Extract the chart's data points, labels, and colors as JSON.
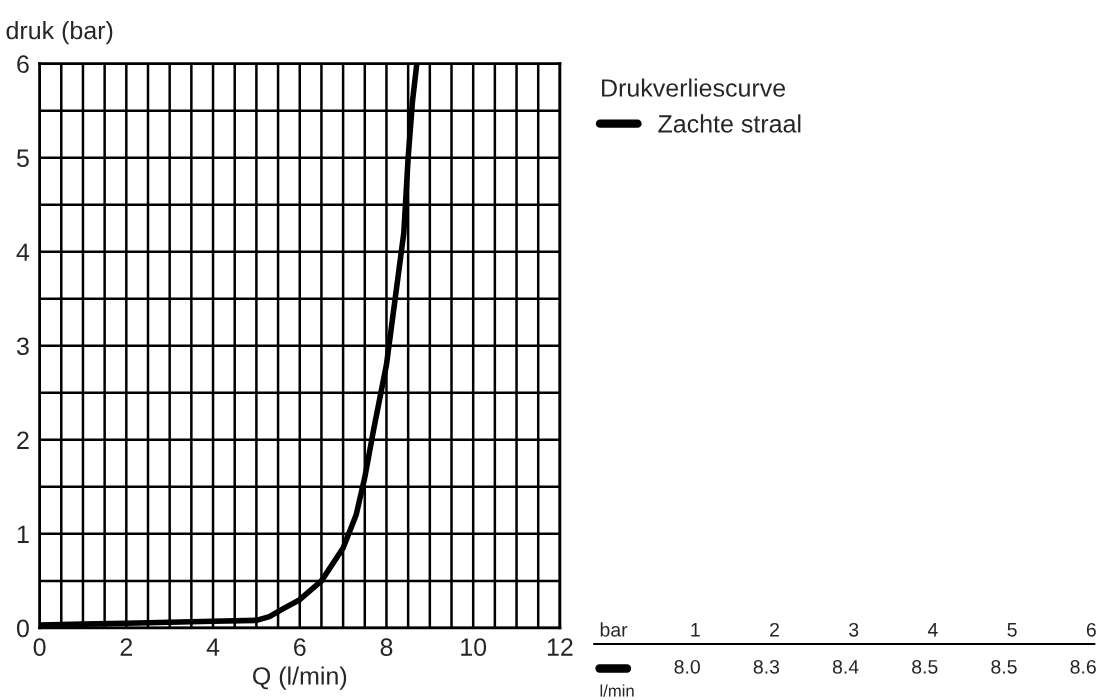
{
  "chart_data": {
    "type": "line",
    "xlabel": "Q (l/min)",
    "ylabel": "druk (bar)",
    "legend_title": "Drukverliescurve",
    "x": [
      0,
      1,
      2,
      3,
      4,
      5,
      5.3,
      5.6,
      6,
      6.5,
      7,
      7.3,
      7.5,
      7.7,
      8,
      8.2,
      8.4,
      8.5,
      8.6,
      8.7
    ],
    "series": [
      {
        "name": "Zachte straal",
        "color": "#000000",
        "values": [
          0.03,
          0.04,
          0.05,
          0.06,
          0.07,
          0.08,
          0.12,
          0.2,
          0.3,
          0.5,
          0.85,
          1.2,
          1.6,
          2.1,
          2.8,
          3.5,
          4.2,
          5.0,
          5.6,
          6.0
        ]
      }
    ],
    "xlim": [
      0,
      12
    ],
    "xticks": [
      0,
      2,
      4,
      6,
      8,
      10,
      12
    ],
    "ylim": [
      0,
      6
    ],
    "yticks": [
      0,
      1,
      2,
      3,
      4,
      5,
      6
    ],
    "grid": true,
    "legend": "right",
    "line_style": "solid",
    "marker": "none",
    "annotations": [
      "bar",
      "1",
      "2",
      "3",
      "4",
      "5",
      "6",
      "8.0",
      "8.3",
      "8.4",
      "8.5",
      "8.5",
      "8.6",
      "l/min"
    ]
  }
}
